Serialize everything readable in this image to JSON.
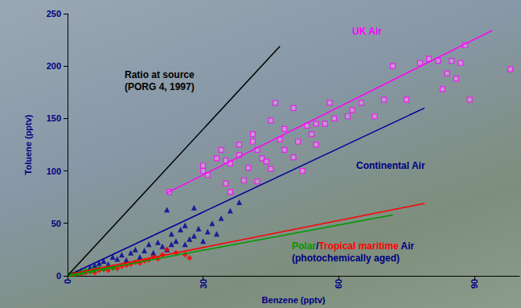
{
  "chart_data": {
    "type": "scatter",
    "xlabel": "Benzene (pptv)",
    "ylabel": "Toluene (pptv)",
    "xlim": [
      0,
      100
    ],
    "ylim": [
      0,
      250
    ],
    "xticks": [
      0,
      30,
      60,
      90
    ],
    "yticks": [
      0,
      50,
      100,
      150,
      200,
      250
    ],
    "grid": false,
    "series": [
      {
        "type": "line",
        "color": "#000000",
        "line_style": "solid",
        "x": [
          0,
          47
        ],
        "values": [
          0,
          219
        ]
      },
      {
        "type": "scatter",
        "color": "#ff00ff",
        "marker": "square",
        "x": [
          22.5,
          30,
          30,
          31,
          33,
          34,
          35,
          35,
          36,
          36,
          38,
          38,
          39,
          40,
          41,
          41,
          42,
          42,
          43,
          44,
          45,
          45,
          46,
          47,
          48,
          48,
          50,
          50,
          51,
          52,
          53,
          54,
          55,
          55,
          57,
          58,
          59,
          62,
          63,
          65,
          68,
          70,
          72,
          75,
          78,
          80,
          82,
          83,
          84,
          85,
          86,
          87,
          88,
          89,
          98
        ],
        "values": [
          80,
          100,
          105,
          96,
          112,
          120,
          88,
          110,
          80,
          107,
          125,
          115,
          91,
          103,
          135,
          128,
          120,
          90,
          112,
          109,
          148,
          102,
          165,
          130,
          140,
          120,
          160,
          113,
          128,
          100,
          143,
          135,
          145,
          125,
          145,
          165,
          150,
          152,
          158,
          165,
          152,
          168,
          200,
          168,
          203,
          207,
          205,
          178,
          193,
          205,
          188,
          203,
          220,
          168,
          197
        ]
      },
      {
        "type": "line",
        "color": "#ff00ff",
        "line_style": "solid",
        "x": [
          22,
          94
        ],
        "values": [
          79,
          234
        ]
      },
      {
        "type": "scatter",
        "color": "#000099",
        "marker": "triangle",
        "x": [
          3,
          5,
          6,
          7,
          8,
          9,
          10,
          11,
          12,
          13,
          14,
          15,
          16,
          17,
          18,
          19,
          20,
          21,
          22,
          22,
          23,
          23,
          24,
          25,
          26,
          26,
          27,
          28,
          28,
          29,
          30,
          31,
          32,
          33,
          34,
          36,
          38
        ],
        "values": [
          5,
          8,
          10,
          12,
          14,
          11,
          18,
          16,
          20,
          15,
          22,
          25,
          18,
          24,
          30,
          22,
          32,
          28,
          63,
          25,
          40,
          30,
          33,
          44,
          30,
          48,
          35,
          38,
          65,
          45,
          33,
          42,
          50,
          40,
          55,
          62,
          70
        ]
      },
      {
        "type": "line",
        "color": "#000099",
        "line_style": "solid",
        "x": [
          1,
          79
        ],
        "values": [
          2,
          160
        ]
      },
      {
        "type": "scatter",
        "color": "#ff0000",
        "marker": "diamond",
        "x": [
          1,
          2,
          3,
          4,
          5,
          6,
          7,
          8,
          9,
          10,
          11,
          12,
          13,
          14,
          15,
          16,
          17,
          18,
          19,
          20,
          21,
          22,
          24,
          26,
          27
        ],
        "values": [
          1,
          2,
          2,
          3,
          4,
          3,
          5,
          6,
          5,
          8,
          7,
          9,
          10,
          11,
          13,
          12,
          14,
          15,
          18,
          16,
          20,
          25,
          22,
          20,
          17
        ]
      },
      {
        "type": "line",
        "color": "#ff0000",
        "line_style": "solid",
        "x": [
          1,
          79
        ],
        "values": [
          2,
          69
        ]
      },
      {
        "type": "scatter",
        "color": "#009900",
        "marker": "diamond",
        "x": [
          0.5,
          1,
          1.5,
          2,
          2.5,
          3,
          3.5,
          4,
          5,
          5.5,
          6,
          7,
          8,
          9,
          10
        ],
        "values": [
          1,
          2,
          1,
          3,
          2,
          4,
          3,
          5,
          4,
          6,
          5,
          7,
          6,
          8,
          7
        ]
      },
      {
        "type": "line",
        "color": "#009900",
        "line_style": "solid",
        "x": [
          1,
          72
        ],
        "values": [
          1,
          58
        ]
      }
    ],
    "annotations": [
      {
        "parts": [
          {
            "text": "UK Air",
            "color": "#ff00ff"
          }
        ]
      },
      {
        "parts": [
          {
            "text": "Ratio at source\n(PORG 4, 1997)",
            "color": "#000000"
          }
        ]
      },
      {
        "parts": [
          {
            "text": "Continental Air",
            "color": "#000080"
          }
        ]
      },
      {
        "parts": [
          {
            "text": "Polar",
            "color": "#009900"
          },
          {
            "text": "/",
            "color": "#000080"
          },
          {
            "text": "Tropical maritime",
            "color": "#ff0000"
          },
          {
            "text": " Air\n(photochemically aged)",
            "color": "#000080"
          }
        ]
      }
    ]
  }
}
